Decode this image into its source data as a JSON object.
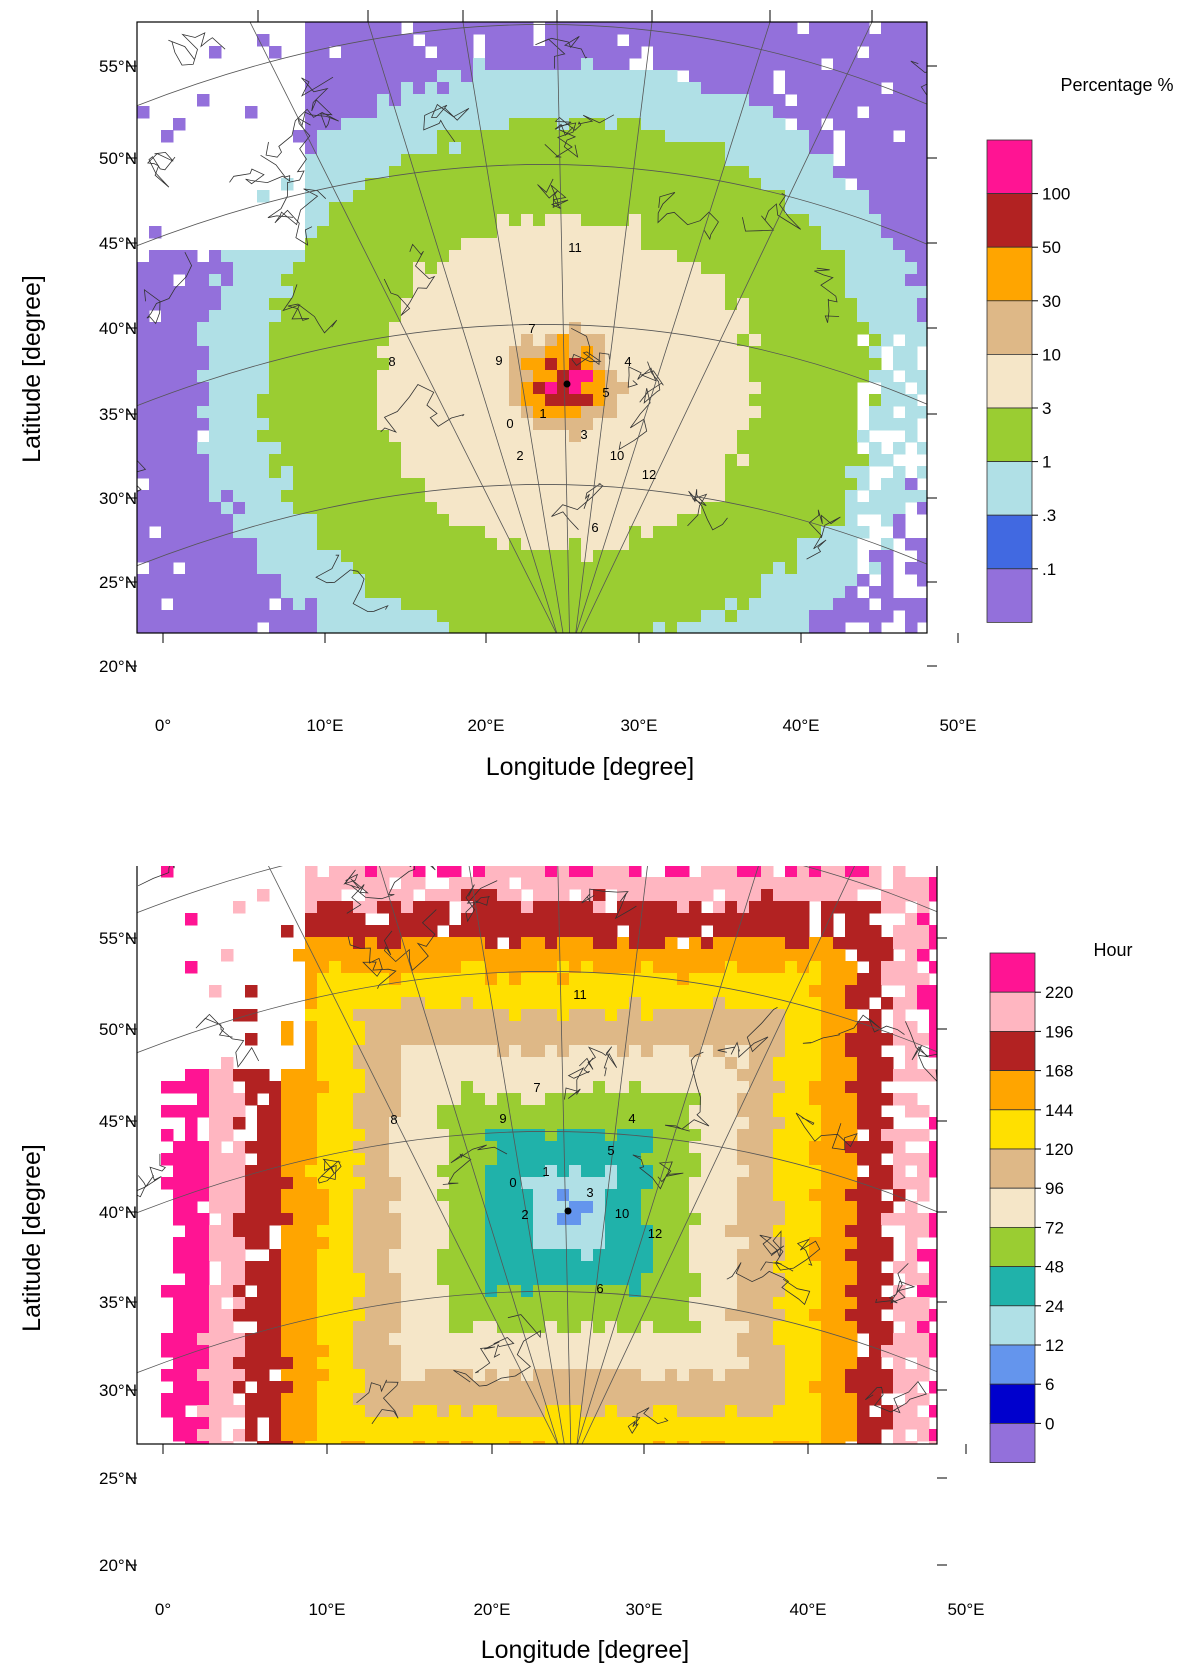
{
  "panels": [
    {
      "id": "top",
      "xlabel": "Longitude [degree]",
      "ylabel": "Latitude [degree]",
      "lon_ticks": [
        "0°",
        "10°E",
        "20°E",
        "30°E",
        "40°E",
        "50°E"
      ],
      "lat_ticks": [
        "55°N",
        "50°N",
        "45°N",
        "40°N",
        "35°N",
        "30°N",
        "25°N",
        "20°N"
      ],
      "colorbar": {
        "title": "Percentage %",
        "labels": [
          "100",
          "50",
          "30",
          "10",
          "3",
          "1",
          ".3",
          ".1"
        ],
        "colors": [
          "#ff1493",
          "#b22222",
          "#ffa500",
          "#deb887",
          "#f5e6c8",
          "#9acd32",
          "#b0e0e6",
          "#4169e1",
          "#9370db"
        ]
      }
    },
    {
      "id": "bottom",
      "xlabel": "Longitude [degree]",
      "ylabel": "Latitude [degree]",
      "lon_ticks": [
        "0°",
        "10°E",
        "20°E",
        "30°E",
        "40°E",
        "50°E"
      ],
      "lat_ticks": [
        "55°N",
        "50°N",
        "45°N",
        "40°N",
        "35°N",
        "30°N",
        "25°N",
        "20°N"
      ],
      "colorbar": {
        "title": "Hour",
        "labels": [
          "220",
          "196",
          "168",
          "144",
          "120",
          "96",
          "72",
          "48",
          "24",
          "12",
          "6",
          "0"
        ],
        "colors": [
          "#ff1493",
          "#ffb6c1",
          "#b22222",
          "#ffa500",
          "#ffe000",
          "#deb887",
          "#f5e6c8",
          "#9acd32",
          "#20b2aa",
          "#b0e0e6",
          "#6495ed",
          "#0000cd",
          "#9370db"
        ]
      }
    }
  ],
  "site_labels": [
    "0",
    "1",
    "2",
    "3",
    "4",
    "5",
    "6",
    "7",
    "8",
    "9",
    "10",
    "11",
    "12"
  ]
}
